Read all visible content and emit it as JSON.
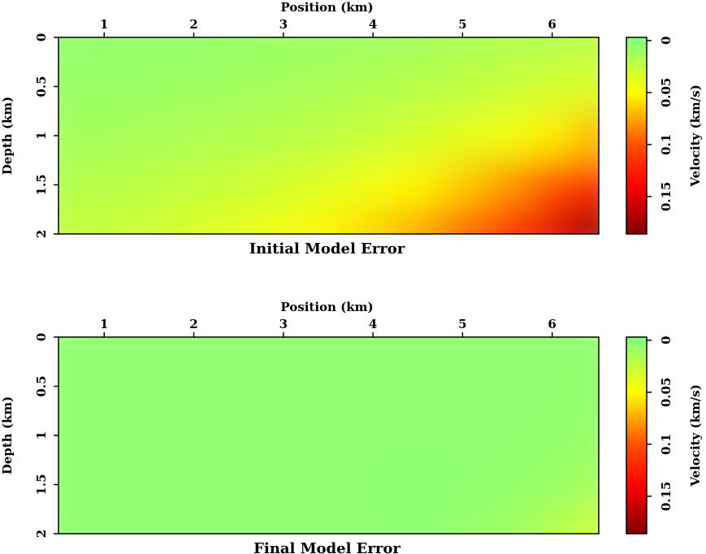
{
  "chart_data": [
    {
      "type": "heatmap",
      "title": "Initial Model Error",
      "x_label": "Position (km)",
      "y_label": "Depth (km)",
      "colorbar_label": "Velocity (km/s)",
      "x": [
        0.5,
        1,
        1.5,
        2,
        2.5,
        3,
        3.5,
        4,
        4.5,
        5,
        5.5,
        6,
        6.5
      ],
      "y": [
        0,
        0.5,
        1,
        1.5,
        2
      ],
      "values": [
        [
          0.005,
          0.005,
          0.005,
          0.006,
          0.007,
          0.008,
          0.009,
          0.01,
          0.012,
          0.014,
          0.016,
          0.018,
          0.02
        ],
        [
          0.008,
          0.008,
          0.009,
          0.01,
          0.011,
          0.013,
          0.015,
          0.017,
          0.02,
          0.023,
          0.027,
          0.031,
          0.035
        ],
        [
          0.012,
          0.013,
          0.014,
          0.016,
          0.018,
          0.02,
          0.023,
          0.027,
          0.032,
          0.038,
          0.045,
          0.055,
          0.07
        ],
        [
          0.018,
          0.02,
          0.022,
          0.025,
          0.028,
          0.032,
          0.037,
          0.044,
          0.053,
          0.065,
          0.08,
          0.1,
          0.125
        ],
        [
          0.024,
          0.027,
          0.03,
          0.034,
          0.039,
          0.045,
          0.053,
          0.063,
          0.076,
          0.095,
          0.12,
          0.15,
          0.18
        ]
      ],
      "xlim": [
        0.49,
        6.52
      ],
      "ylim": [
        0,
        2
      ],
      "xticks": [
        1,
        2,
        3,
        4,
        5,
        6
      ],
      "yticks": [
        0,
        0.5,
        1,
        1.5,
        2
      ],
      "clim": [
        -0.003,
        0.186
      ],
      "cticks": [
        0,
        0.05,
        0.1,
        0.15
      ],
      "colormap": [
        {
          "value": -0.003,
          "color": "#80ff80"
        },
        {
          "value": 0.05,
          "color": "#ffff00"
        },
        {
          "value": 0.1,
          "color": "#ff5000"
        },
        {
          "value": 0.14,
          "color": "#ff0000"
        },
        {
          "value": 0.186,
          "color": "#800000"
        }
      ]
    },
    {
      "type": "heatmap",
      "title": "Final Model Error",
      "x_label": "Position (km)",
      "y_label": "Depth (km)",
      "colorbar_label": "Velocity (km/s)",
      "x": [
        0.5,
        1,
        1.5,
        2,
        2.5,
        3,
        3.5,
        4,
        4.5,
        5,
        5.5,
        6,
        6.5
      ],
      "y": [
        0,
        0.5,
        1,
        1.5,
        2
      ],
      "values": [
        [
          0.004,
          0.004,
          0.004,
          0.004,
          0.004,
          0.004,
          0.004,
          0.004,
          0.004,
          0.004,
          0.004,
          0.004,
          0.004
        ],
        [
          0.004,
          0.004,
          0.004,
          0.004,
          0.004,
          0.004,
          0.004,
          0.004,
          0.004,
          0.004,
          0.004,
          0.004,
          0.005
        ],
        [
          0.004,
          0.004,
          0.004,
          0.004,
          0.004,
          0.004,
          0.004,
          0.004,
          0.004,
          0.004,
          0.004,
          0.005,
          0.007
        ],
        [
          0.004,
          0.004,
          0.004,
          0.004,
          0.004,
          0.004,
          0.004,
          0.004,
          0.003,
          0.004,
          0.005,
          0.008,
          0.012
        ],
        [
          0.004,
          0.004,
          0.004,
          0.004,
          0.004,
          0.004,
          0.004,
          0.004,
          0.003,
          0.006,
          0.01,
          0.018,
          0.03
        ]
      ],
      "xlim": [
        0.49,
        6.52
      ],
      "ylim": [
        0,
        2
      ],
      "xticks": [
        1,
        2,
        3,
        4,
        5,
        6
      ],
      "yticks": [
        0,
        0.5,
        1,
        1.5,
        2
      ],
      "clim": [
        -0.003,
        0.186
      ],
      "cticks": [
        0,
        0.05,
        0.1,
        0.15
      ],
      "colormap": [
        {
          "value": -0.003,
          "color": "#80ff80"
        },
        {
          "value": 0.05,
          "color": "#ffff00"
        },
        {
          "value": 0.1,
          "color": "#ff5000"
        },
        {
          "value": 0.14,
          "color": "#ff0000"
        },
        {
          "value": 0.186,
          "color": "#800000"
        }
      ]
    }
  ]
}
